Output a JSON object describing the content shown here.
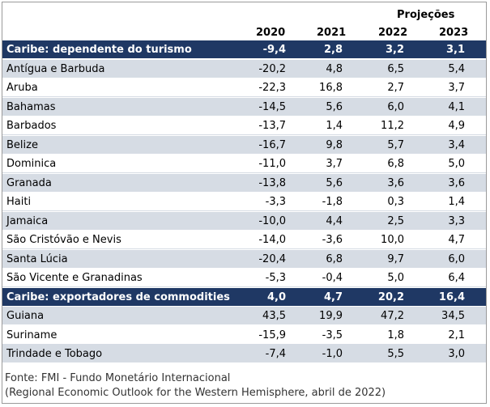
{
  "header": {
    "projections_label": "Projeções",
    "years": [
      "2020",
      "2021",
      "2022",
      "2023"
    ]
  },
  "rows": [
    {
      "name": "Caribe: dependente do turismo",
      "values": [
        "-9,4",
        "2,8",
        "3,2",
        "3,1"
      ],
      "category": true
    },
    {
      "name": "Antígua e Barbuda",
      "values": [
        "-20,2",
        "4,8",
        "6,5",
        "5,4"
      ]
    },
    {
      "name": "Aruba",
      "values": [
        "-22,3",
        "16,8",
        "2,7",
        "3,7"
      ]
    },
    {
      "name": "Bahamas",
      "values": [
        "-14,5",
        "5,6",
        "6,0",
        "4,1"
      ]
    },
    {
      "name": "Barbados",
      "values": [
        "-13,7",
        "1,4",
        "11,2",
        "4,9"
      ]
    },
    {
      "name": "Belize",
      "values": [
        "-16,7",
        "9,8",
        "5,7",
        "3,4"
      ]
    },
    {
      "name": "Dominica",
      "values": [
        "-11,0",
        "3,7",
        "6,8",
        "5,0"
      ]
    },
    {
      "name": "Granada",
      "values": [
        "-13,8",
        "5,6",
        "3,6",
        "3,6"
      ]
    },
    {
      "name": "Haiti",
      "values": [
        "-3,3",
        "-1,8",
        "0,3",
        "1,4"
      ]
    },
    {
      "name": "Jamaica",
      "values": [
        "-10,0",
        "4,4",
        "2,5",
        "3,3"
      ]
    },
    {
      "name": "São Cristóvão e Nevis",
      "values": [
        "-14,0",
        "-3,6",
        "10,0",
        "4,7"
      ]
    },
    {
      "name": "Santa Lúcia",
      "values": [
        "-20,4",
        "6,8",
        "9,7",
        "6,0"
      ]
    },
    {
      "name": "São Vicente e Granadinas",
      "values": [
        "-5,3",
        "-0,4",
        "5,0",
        "6,4"
      ]
    },
    {
      "name": "Caribe: exportadores de commodities",
      "values": [
        "4,0",
        "4,7",
        "20,2",
        "16,4"
      ],
      "category": true
    },
    {
      "name": "Guiana",
      "values": [
        "43,5",
        "19,9",
        "47,2",
        "34,5"
      ]
    },
    {
      "name": "Suriname",
      "values": [
        "-15,9",
        "-3,5",
        "1,8",
        "2,1"
      ]
    },
    {
      "name": "Trindade e Tobago",
      "values": [
        "-7,4",
        "-1,0",
        "5,5",
        "3,0"
      ]
    }
  ],
  "footer": {
    "source": "Fonte: FMI - Fundo Monetário Internacional",
    "note": "(Regional Economic Outlook for the Western Hemisphere, abril de 2022)"
  },
  "colors": {
    "category_bg": "#1f3864",
    "stripe_bg": "#d6dce4"
  }
}
